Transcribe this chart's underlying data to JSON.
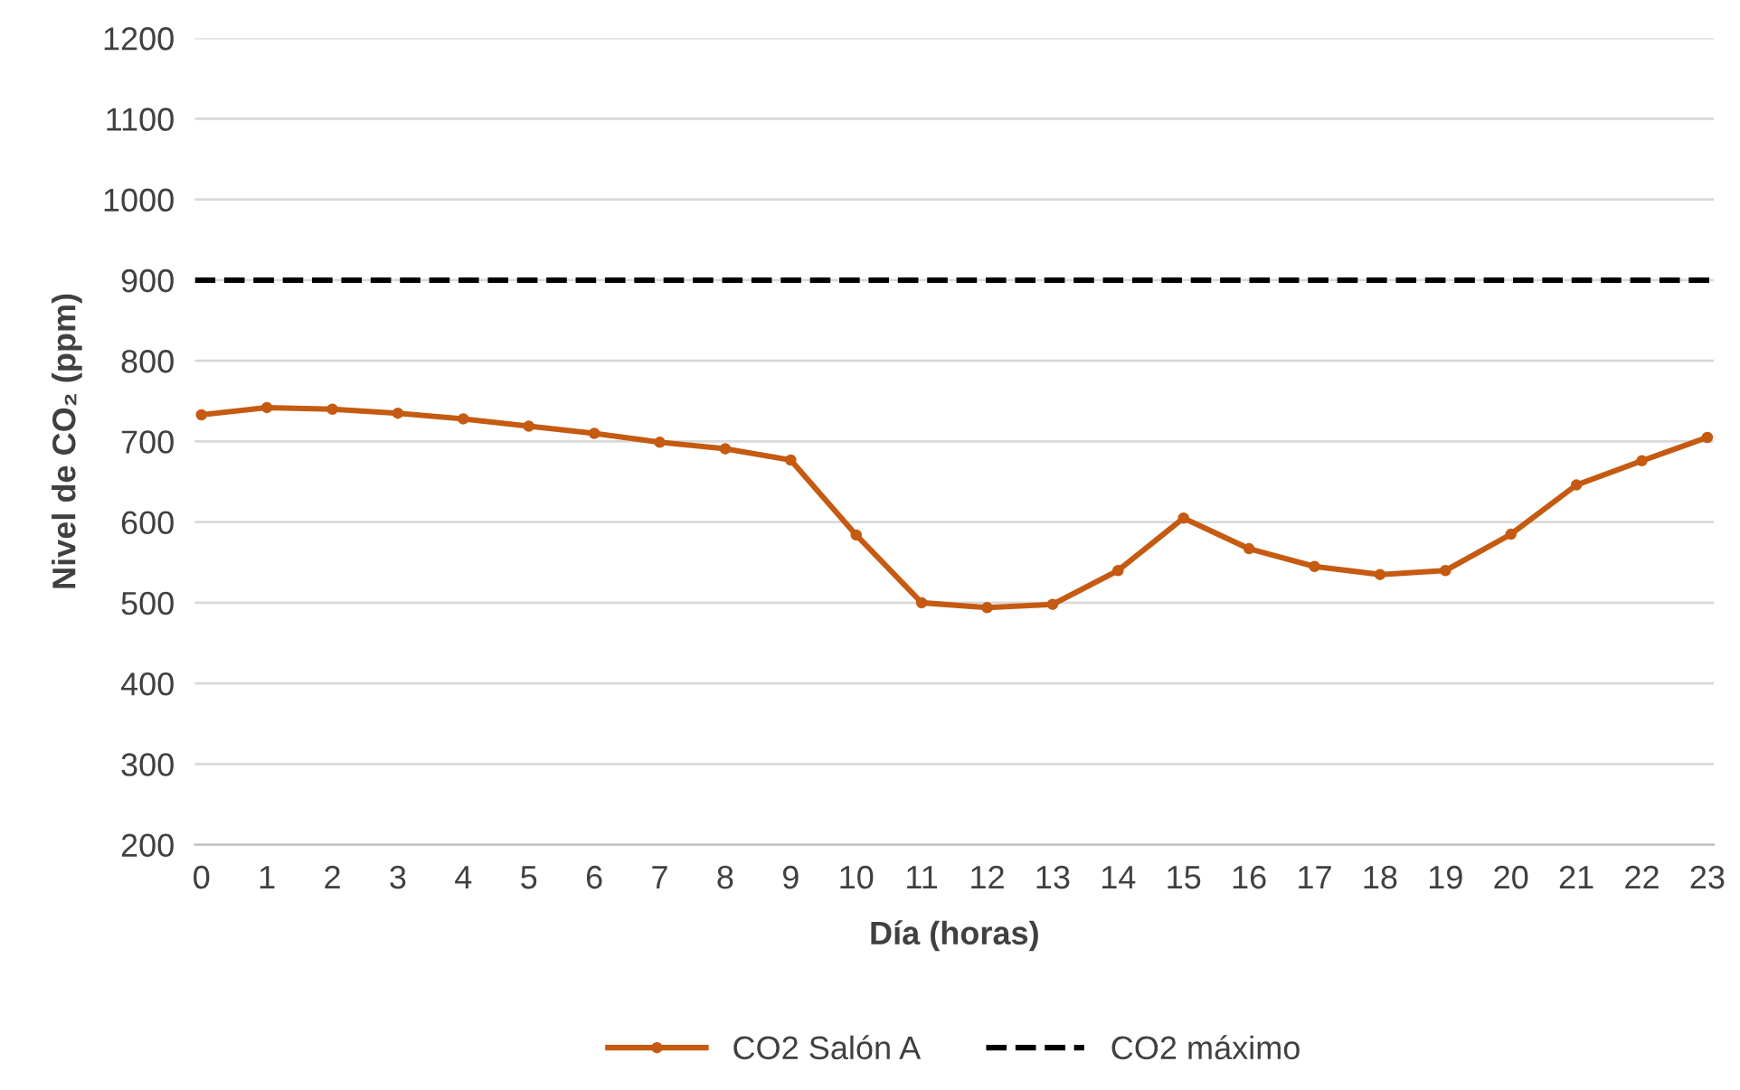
{
  "chart_data": {
    "type": "line",
    "xlabel": "Día (horas)",
    "ylabel": "Nivel de CO₂ (ppm)",
    "categories": [
      "0",
      "1",
      "2",
      "3",
      "4",
      "5",
      "6",
      "7",
      "8",
      "9",
      "10",
      "11",
      "12",
      "13",
      "14",
      "15",
      "16",
      "17",
      "18",
      "19",
      "20",
      "21",
      "22",
      "23"
    ],
    "series": [
      {
        "name": "CO2 Salón A",
        "color": "#c55a11",
        "values": [
          733,
          742,
          740,
          735,
          728,
          719,
          710,
          699,
          691,
          677,
          584,
          500,
          494,
          498,
          540,
          605,
          567,
          545,
          535,
          540,
          585,
          646,
          676,
          705
        ]
      }
    ],
    "ref_lines": [
      {
        "axis": "y",
        "value": 900,
        "label": "CO2 máximo",
        "color": "#000000",
        "line_style": "dashed"
      }
    ],
    "ylim": [
      200,
      1200
    ],
    "yticks": [
      200,
      300,
      400,
      500,
      600,
      700,
      800,
      900,
      1000,
      1100,
      1200
    ],
    "grid": "y",
    "legend": "bottom",
    "marker": "circle",
    "line_style": "solid"
  }
}
